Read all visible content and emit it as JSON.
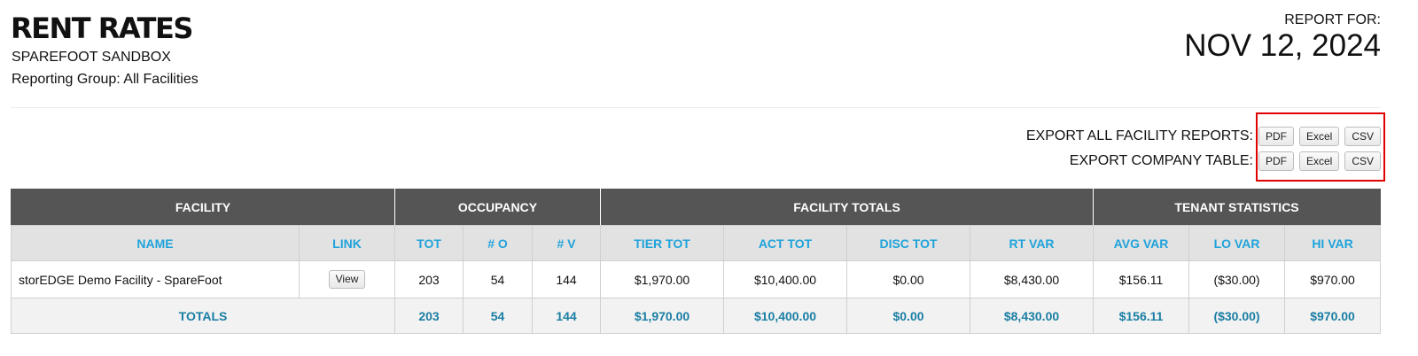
{
  "header": {
    "title": "RENT RATES",
    "company": "SPAREFOOT SANDBOX",
    "reporting_group": "Reporting Group: All Facilities",
    "report_for_label": "REPORT FOR:",
    "report_date": "NOV 12, 2024"
  },
  "exports": [
    {
      "label": "EXPORT ALL FACILITY REPORTS:",
      "buttons": [
        "PDF",
        "Excel",
        "CSV"
      ]
    },
    {
      "label": "EXPORT COMPANY TABLE:",
      "buttons": [
        "PDF",
        "Excel",
        "CSV"
      ]
    }
  ],
  "table": {
    "groups": [
      "FACILITY",
      "OCCUPANCY",
      "FACILITY TOTALS",
      "TENANT STATISTICS"
    ],
    "columns": [
      "NAME",
      "LINK",
      "TOT",
      "# O",
      "# V",
      "TIER TOT",
      "ACT TOT",
      "DISC TOT",
      "RT VAR",
      "AVG VAR",
      "LO VAR",
      "HI VAR"
    ],
    "rows": [
      {
        "name": "storEDGE Demo Facility - SpareFoot",
        "link": "View",
        "tot": "203",
        "o": "54",
        "v": "144",
        "tier_tot": "$1,970.00",
        "act_tot": "$10,400.00",
        "disc_tot": "$0.00",
        "rt_var": "$8,430.00",
        "avg_var": "$156.11",
        "lo_var": "($30.00)",
        "hi_var": "$970.00"
      }
    ],
    "totals": {
      "label": "TOTALS",
      "tot": "203",
      "o": "54",
      "v": "144",
      "tier_tot": "$1,970.00",
      "act_tot": "$10,400.00",
      "disc_tot": "$0.00",
      "rt_var": "$8,430.00",
      "avg_var": "$156.11",
      "lo_var": "($30.00)",
      "hi_var": "$970.00"
    }
  },
  "colors": {
    "header_bg": "#555555",
    "column_text": "#1fa3da",
    "totals_text": "#1a7ea3",
    "highlight": "#e00000"
  }
}
